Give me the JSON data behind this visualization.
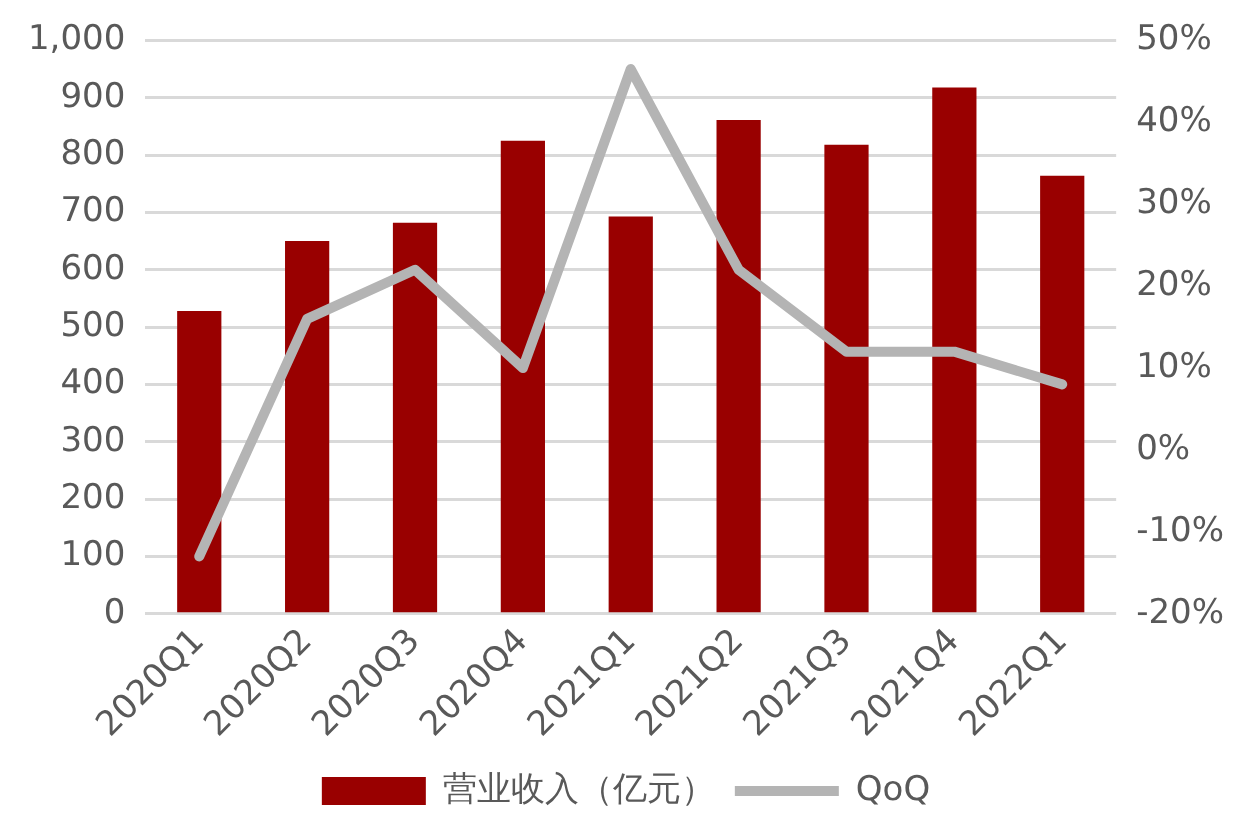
{
  "chart_data": {
    "type": "bar",
    "categories": [
      "2020Q1",
      "2020Q2",
      "2020Q3",
      "2020Q4",
      "2021Q1",
      "2021Q2",
      "2021Q3",
      "2021Q4",
      "2022Q1"
    ],
    "series": [
      {
        "name": "营业收入（亿元）",
        "color": "#990000",
        "values": [
          528,
          650,
          682,
          825,
          693,
          861,
          818,
          918,
          764
        ]
      },
      {
        "name": "QoQ",
        "type": "line",
        "axis": "y2",
        "color": "#b4b4b4",
        "values": [
          -13,
          16,
          22,
          10,
          46.5,
          22,
          12,
          12,
          8
        ]
      }
    ],
    "ylim": [
      0,
      1000
    ],
    "yticks": [
      0,
      100,
      200,
      300,
      400,
      500,
      600,
      700,
      800,
      900,
      {
        "value": 1000,
        "label": "1,000"
      }
    ],
    "y2lim": [
      -20,
      50
    ],
    "y2ticks": [
      {
        "value": -20,
        "label": "-20%"
      },
      {
        "value": -10,
        "label": "-10%"
      },
      {
        "value": 0,
        "label": "0%"
      },
      {
        "value": 10,
        "label": "10%"
      },
      {
        "value": 20,
        "label": "20%"
      },
      {
        "value": 30,
        "label": "30%"
      },
      {
        "value": 40,
        "label": "40%"
      },
      {
        "value": 50,
        "label": "50%"
      }
    ],
    "grid": "y",
    "legend": "bottom"
  }
}
